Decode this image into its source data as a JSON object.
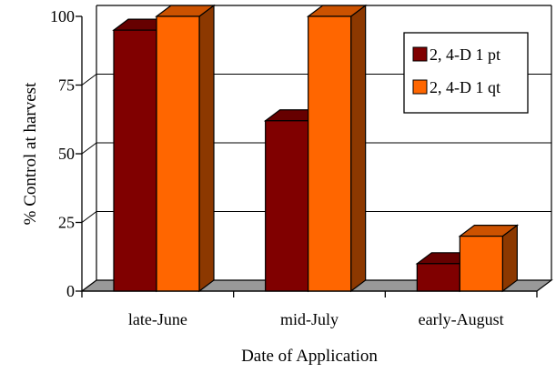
{
  "chart_data": {
    "type": "bar",
    "title": "",
    "xlabel": "Date of Application",
    "ylabel": "% Control at harvest",
    "categories": [
      "late-June",
      "mid-July",
      "early-August"
    ],
    "series": [
      {
        "name": "2, 4-D 1 pt",
        "values": [
          95,
          62,
          10
        ],
        "color": "#800000"
      },
      {
        "name": "2, 4-D 1 qt",
        "values": [
          100,
          100,
          20
        ],
        "color": "#FF6600"
      }
    ],
    "ylim": [
      0,
      100
    ],
    "yticks": [
      0,
      25,
      50,
      75,
      100
    ],
    "grid": true,
    "three_d": true,
    "floor_color": "#999999",
    "legend_position": "top-right"
  }
}
